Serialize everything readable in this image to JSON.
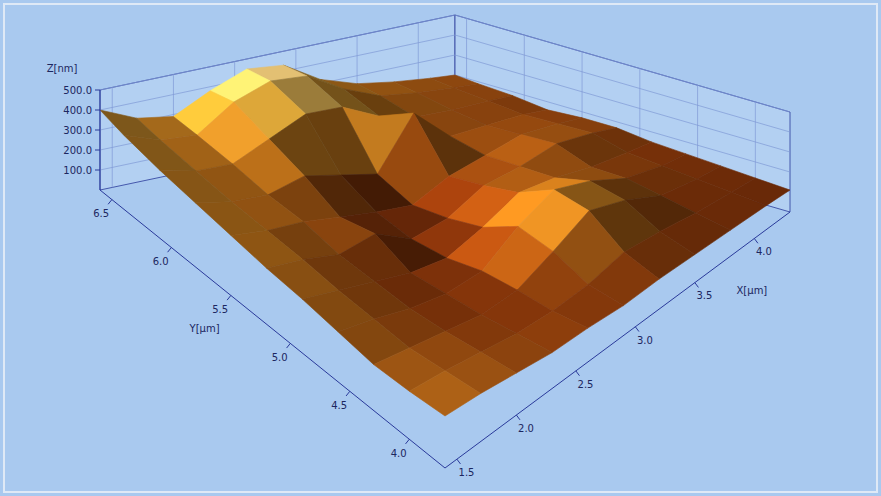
{
  "chart_data": {
    "type": "surface",
    "x_label": "X[µm]",
    "y_label": "Y[µm]",
    "z_label": "Z[nm]",
    "xlim": [
      1.4,
      4.3
    ],
    "ylim": [
      3.7,
      6.6
    ],
    "zlim": [
      0,
      500
    ],
    "xticks": [
      1.5,
      {
        "value": 2,
        "label": "2.0"
      },
      2.5,
      {
        "value": 3,
        "label": "3.0"
      },
      3.5,
      {
        "value": 4,
        "label": "4.0"
      }
    ],
    "yticks": [
      {
        "value": 4,
        "label": "4.0"
      },
      4.5,
      {
        "value": 5,
        "label": "5.0"
      },
      5.5,
      {
        "value": 6,
        "label": "6.0"
      },
      6.5
    ],
    "zticks": [
      {
        "value": 100,
        "label": "100.0"
      },
      {
        "value": 200,
        "label": "200.0"
      },
      {
        "value": 300,
        "label": "300.0"
      },
      {
        "value": 400,
        "label": "400.0"
      },
      {
        "value": 500,
        "label": "500.0"
      }
    ],
    "grid": true,
    "x": [
      1.4,
      1.7,
      2.0,
      2.3,
      2.6,
      2.9,
      3.2,
      3.5,
      3.8,
      4.1,
      4.3
    ],
    "y": [
      3.7,
      4.0,
      4.3,
      4.6,
      4.9,
      5.2,
      5.5,
      5.8,
      6.1,
      6.4,
      6.6
    ],
    "z": [
      [
        260,
        240,
        210,
        180,
        170,
        150,
        150,
        140,
        130,
        120,
        110
      ],
      [
        240,
        220,
        190,
        160,
        150,
        160,
        200,
        180,
        150,
        130,
        120
      ],
      [
        230,
        200,
        170,
        140,
        150,
        230,
        320,
        260,
        170,
        140,
        130
      ],
      [
        250,
        210,
        160,
        130,
        140,
        260,
        340,
        280,
        190,
        150,
        140
      ],
      [
        270,
        220,
        170,
        120,
        100,
        160,
        240,
        220,
        180,
        160,
        150
      ],
      [
        280,
        240,
        180,
        200,
        90,
        110,
        190,
        200,
        230,
        200,
        170
      ],
      [
        300,
        250,
        220,
        170,
        120,
        80,
        150,
        180,
        210,
        190,
        170
      ],
      [
        320,
        260,
        230,
        260,
        200,
        140,
        380,
        200,
        190,
        180,
        160
      ],
      [
        340,
        280,
        260,
        330,
        400,
        380,
        280,
        220,
        200,
        190,
        180
      ],
      [
        370,
        300,
        280,
        400,
        460,
        440,
        330,
        250,
        220,
        200,
        190
      ],
      [
        400,
        320,
        290,
        380,
        450,
        430,
        320,
        260,
        230,
        210,
        200
      ]
    ]
  }
}
